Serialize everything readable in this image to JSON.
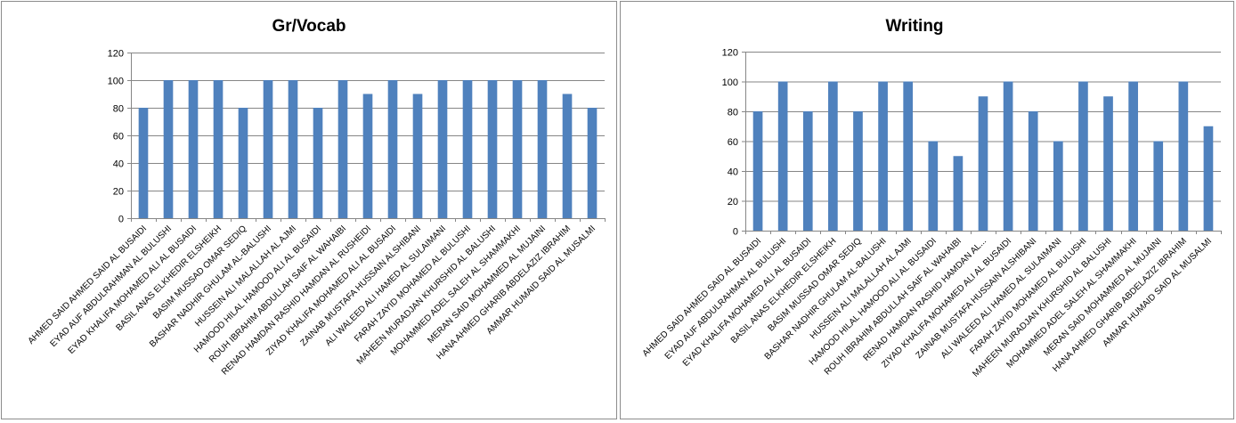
{
  "chart_data": [
    {
      "type": "bar",
      "title": "Gr/Vocab",
      "ylim": [
        0,
        120
      ],
      "yticks": [
        0,
        20,
        40,
        60,
        80,
        100,
        120
      ],
      "grid": true,
      "bar_color": "#4f81bd",
      "categories": [
        "AHMED SAID AHMED  SAID AL BUSAIDI",
        "EYAD AUF ABDULRAHMAN AL BULUSHI",
        "EYAD KHALIFA MOHAMED ALI AL BUSAIDI",
        "BASIL ANAS ELKHEDIR ELSHEIKH",
        "BASIM MUSSAD OMAR SEDIQ",
        "BASHAR NADHIR GHULAM AL-BALUSHI",
        "HUSSEIN ALI MALALLAH AL AJMI",
        "HAMOOD HILAL HAMOOD ALI  AL BUSAIDI",
        "ROUH IBRAHIM ABDULLAH SAIF AL WAHAIBI",
        "RENAD HAMDAN RASHID HAMDAN AL RUSHEIDI",
        "ZIYAD KHALIFA MOHAMED ALI AL BUSAIDI",
        "ZAINAB MUSTAFA HUSSAIN ALSHIBANI",
        "ALI WALEED ALI HAMED  AL SULAIMANI",
        "FARAH ZAYID MOHAMED AL BULUSHI",
        "MAHEEN MURADJAN KHURSHID  AL BALUSHI",
        "MOHAMMED ADEL SALEH AL SHAMMAKHI",
        "MERAN SAID MOHAMMED AL MUJAINI",
        "HANA AHMED GHARIB ABDELAZIZ IBRAHIM",
        "AMMAR HUMAID SAID AL MUSALMI"
      ],
      "values": [
        80,
        100,
        100,
        100,
        80,
        100,
        100,
        80,
        100,
        90,
        100,
        90,
        100,
        100,
        100,
        100,
        100,
        90,
        80
      ]
    },
    {
      "type": "bar",
      "title": "Writing",
      "ylim": [
        0,
        120
      ],
      "yticks": [
        0,
        20,
        40,
        60,
        80,
        100,
        120
      ],
      "grid": true,
      "bar_color": "#4f81bd",
      "categories": [
        "AHMED SAID AHMED  SAID AL BUSAIDI",
        "EYAD AUF ABDULRAHMAN AL BULUSHI",
        "EYAD KHALIFA MOHAMED ALI AL BUSAIDI",
        "BASIL ANAS ELKHEDIR ELSHEIKH",
        "BASIM MUSSAD OMAR SEDIQ",
        "BASHAR NADHIR GHULAM AL-BALUSHI",
        "HUSSEIN ALI MALALLAH AL AJMI",
        "HAMOOD HILAL HAMOOD ALI  AL BUSAIDI",
        "ROUH IBRAHIM ABDULLAH SAIF AL WAHAIBI",
        "RENAD HAMDAN RASHID HAMDAN AL...",
        "ZIYAD KHALIFA MOHAMED ALI AL BUSAIDI",
        "ZAINAB MUSTAFA HUSSAIN ALSHIBANI",
        "ALI WALEED ALI HAMED  AL SULAIMANI",
        "FARAH ZAYID MOHAMED AL BULUSHI",
        "MAHEEN MURADJAN KHURSHID  AL BALUSHI",
        "MOHAMMED ADEL SALEH AL SHAMMAKHI",
        "MERAN SAID MOHAMMED AL MUJAINI",
        "HANA AHMED GHARIB ABDELAZIZ IBRAHIM",
        "AMMAR HUMAID SAID AL MUSALMI"
      ],
      "values": [
        80,
        100,
        80,
        100,
        80,
        100,
        100,
        60,
        50,
        90,
        100,
        80,
        60,
        100,
        90,
        100,
        60,
        100,
        70
      ]
    }
  ]
}
